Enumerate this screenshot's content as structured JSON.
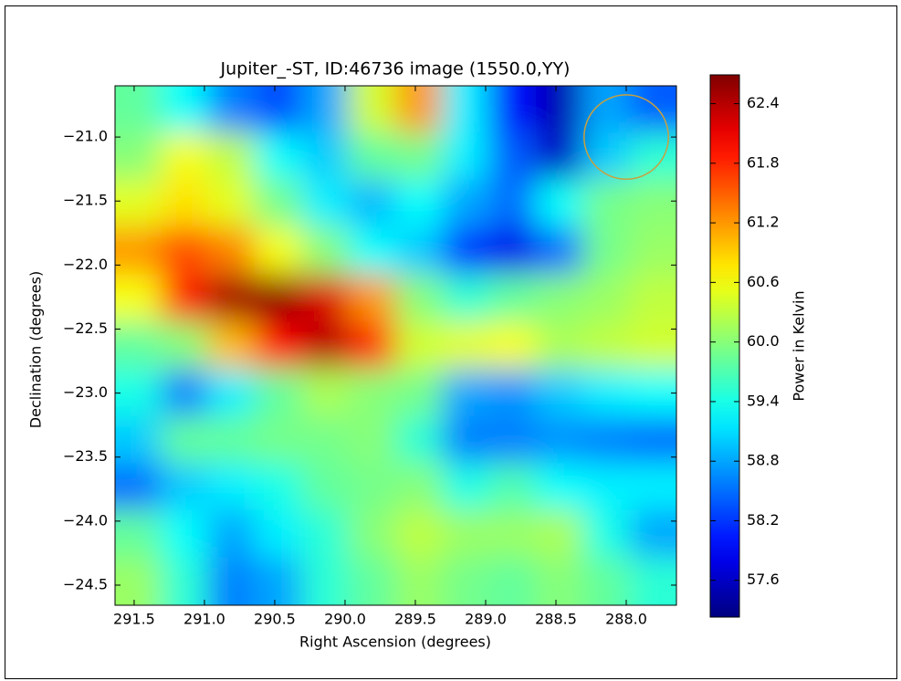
{
  "chart_data": {
    "type": "heatmap",
    "title": "Jupiter_-ST, ID:46736 image (1550.0,YY)",
    "x_label": "Right Ascension (degrees)",
    "y_label": "Declination (degrees)",
    "colorbar_label": "Power in Kelvin",
    "xlim": [
      291.636,
      287.643
    ],
    "ylim": [
      -24.657,
      -20.6
    ],
    "xticks": [
      291.5,
      {
        "value": 291,
        "label": "291.0"
      },
      290.5,
      {
        "value": 290,
        "label": "290.0"
      },
      289.5,
      {
        "value": 289,
        "label": "289.0"
      },
      288.5,
      {
        "value": 288,
        "label": "288.0"
      }
    ],
    "yticks": [
      {
        "value": -21,
        "label": "−21.0"
      },
      {
        "value": -21.5,
        "label": "−21.5"
      },
      {
        "value": -22,
        "label": "−22.0"
      },
      {
        "value": -22.5,
        "label": "−22.5"
      },
      {
        "value": -23,
        "label": "−23.0"
      },
      {
        "value": -23.5,
        "label": "−23.5"
      },
      {
        "value": -24,
        "label": "−24.0"
      },
      {
        "value": -24.5,
        "label": "−24.5"
      }
    ],
    "clim": [
      57.23,
      62.69
    ],
    "cticks": [
      57.6,
      58.2,
      58.8,
      59.4,
      {
        "value": 60,
        "label": "60.0"
      },
      60.6,
      61.2,
      61.8,
      62.4
    ],
    "colormap": "jet",
    "x": [
      291.47,
      291.14,
      290.81,
      290.47,
      290.14,
      289.81,
      289.47,
      289.14,
      288.81,
      288.47,
      288.14,
      287.81
    ],
    "y": [
      -20.79,
      -21.15,
      -21.52,
      -21.89,
      -22.26,
      -22.63,
      -23.0,
      -23.37,
      -23.73,
      -24.1,
      -24.47
    ],
    "z": [
      [
        59.8,
        59.3,
        58.6,
        58.3,
        58.8,
        60.4,
        61.2,
        59.2,
        58.0,
        57.5,
        58.8,
        58.4
      ],
      [
        60.0,
        60.6,
        60.3,
        59.3,
        59.0,
        59.8,
        59.9,
        59.2,
        58.4,
        57.6,
        59.0,
        59.5
      ],
      [
        60.5,
        60.8,
        60.5,
        59.9,
        59.2,
        58.9,
        59.3,
        58.8,
        58.5,
        59.3,
        59.9,
        60.0
      ],
      [
        61.2,
        61.6,
        61.3,
        60.6,
        60.0,
        59.3,
        59.0,
        58.2,
        57.8,
        58.5,
        59.9,
        60.1
      ],
      [
        60.6,
        61.9,
        62.5,
        62.6,
        62.2,
        61.2,
        60.0,
        59.5,
        59.8,
        60.0,
        60.1,
        60.3
      ],
      [
        59.8,
        60.0,
        61.0,
        62.0,
        62.4,
        61.8,
        60.4,
        60.5,
        60.6,
        60.2,
        60.3,
        60.4
      ],
      [
        59.4,
        58.6,
        59.2,
        59.8,
        60.2,
        60.0,
        59.9,
        58.8,
        58.7,
        59.0,
        59.2,
        59.3
      ],
      [
        59.0,
        59.8,
        59.8,
        59.9,
        59.9,
        60.0,
        59.5,
        58.6,
        58.6,
        58.7,
        58.6,
        58.5
      ],
      [
        58.5,
        59.0,
        59.2,
        59.4,
        59.8,
        59.9,
        60.0,
        59.4,
        59.7,
        59.3,
        59.2,
        59.2
      ],
      [
        59.8,
        59.3,
        58.8,
        59.2,
        59.5,
        60.0,
        60.3,
        60.1,
        60.1,
        60.2,
        59.4,
        58.8
      ],
      [
        60.1,
        59.5,
        58.6,
        58.8,
        59.5,
        59.8,
        60.1,
        59.9,
        59.8,
        60.0,
        59.8,
        59.5
      ]
    ],
    "circle": {
      "x": 288.0,
      "y": -21.0,
      "r": 0.3,
      "color": "#c8a040"
    }
  }
}
